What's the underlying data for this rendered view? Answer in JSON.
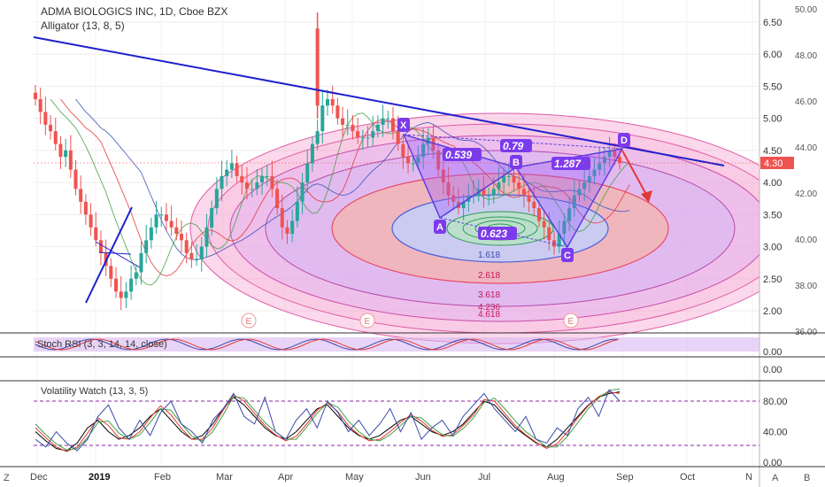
{
  "header": {
    "symbol_line": "ADMA BIOLOGICS INC, 1D, Cboe BZX",
    "indicator": "Alligator (13, 8, 5)"
  },
  "corner_buttons": {
    "left": "Z",
    "right_a": "A",
    "right_b": "B"
  },
  "colors": {
    "candle_up": "#26a69a",
    "candle_down": "#ef5350",
    "trendline": "#1f1fcc",
    "pattern_fill": "#9b59ff",
    "fib_outer": "#f06bb1",
    "fib_mid": "#e84c6a",
    "fib_inner": "#4a61d6",
    "price_label_bg": "#ef5350"
  },
  "chart_data": [
    {
      "type": "candlestick",
      "title": "ADMA BIOLOGICS INC, 1D, Cboe BZX",
      "x_labels": [
        "Dec",
        "2019",
        "Feb",
        "Mar",
        "Apr",
        "May",
        "Jun",
        "Jul",
        "Aug",
        "Sep",
        "Oct",
        "N"
      ],
      "y_left_ticks": [
        "6.50",
        "6.00",
        "5.50",
        "5.00",
        "4.50",
        "4.00",
        "3.50",
        "3.00",
        "2.50",
        "2.00"
      ],
      "y_right_ticks": [
        "50.00",
        "48.00",
        "46.00",
        "44.00",
        "42.00",
        "40.00",
        "38.00",
        "36.00"
      ],
      "ylim": [
        1.7,
        6.85
      ],
      "last_price": "4.30",
      "closes": [
        5.3,
        5.1,
        4.9,
        4.8,
        4.6,
        4.4,
        4.5,
        4.2,
        3.9,
        3.7,
        3.5,
        3.3,
        3.1,
        2.9,
        2.7,
        2.5,
        2.3,
        2.2,
        2.3,
        2.5,
        2.6,
        2.9,
        3.1,
        3.3,
        3.5,
        3.5,
        3.4,
        3.3,
        3.2,
        3.1,
        2.9,
        2.8,
        2.8,
        3.0,
        3.3,
        3.6,
        3.9,
        4.1,
        4.2,
        4.3,
        4.1,
        4.0,
        3.9,
        3.9,
        4.0,
        4.1,
        4.1,
        3.9,
        3.6,
        3.3,
        3.2,
        3.4,
        3.7,
        4.0,
        4.3,
        4.6,
        4.8,
        5.2,
        5.3,
        5.2,
        5.0,
        4.9,
        4.9,
        4.8,
        4.7,
        4.7,
        4.7,
        4.8,
        4.9,
        5.0,
        5.0,
        4.8,
        4.6,
        4.4,
        4.3,
        4.3,
        4.4,
        4.6,
        4.7,
        4.5,
        4.2,
        4.0,
        3.8,
        3.7,
        3.6,
        3.7,
        3.8,
        3.8,
        3.9,
        3.8,
        3.8,
        3.9,
        4.0,
        4.1,
        4.1,
        4.0,
        3.9,
        3.8,
        3.7,
        3.6,
        3.4,
        3.3,
        3.1,
        3.0,
        3.2,
        3.4,
        3.6,
        3.8,
        3.9,
        4.0,
        4.1,
        4.2,
        4.3,
        4.4,
        4.5,
        4.4,
        4.3
      ],
      "fib_ratio_labels": [
        "1.618",
        "2.618",
        "3.618",
        "4.236",
        "4.618"
      ],
      "pattern": {
        "points": [
          {
            "label": "X",
            "price": 4.65
          },
          {
            "label": "A",
            "price": 3.5
          },
          {
            "label": "B",
            "price": 4.1
          },
          {
            "label": "C",
            "price": 3.0
          },
          {
            "label": "D",
            "price": 4.45
          }
        ],
        "ratios": [
          "0.539",
          "0.79",
          "1.287",
          "0.623"
        ]
      },
      "earnings_marker": "E"
    },
    {
      "type": "line",
      "title": "Stoch RSI (3, 3, 14, 14, close)",
      "y_ticks": [
        "0.00"
      ]
    },
    {
      "type": "line",
      "title": "",
      "y_ticks": [
        "0.00"
      ]
    },
    {
      "type": "line",
      "title": "Volatility Watch (13, 3, 5)",
      "y_ticks": [
        "80.00",
        "40.00",
        "0.00"
      ],
      "ylim": [
        0,
        100
      ],
      "series": [
        {
          "name": "",
          "color": "#000000",
          "values": [
            40,
            28,
            18,
            15,
            25,
            45,
            55,
            40,
            30,
            35,
            45,
            60,
            70,
            55,
            40,
            30,
            35,
            50,
            70,
            85,
            75,
            60,
            45,
            35,
            30,
            40,
            55,
            70,
            75,
            60,
            45,
            35,
            30,
            35,
            45,
            55,
            60,
            50,
            40,
            35,
            40,
            50,
            65,
            80,
            75,
            60,
            45,
            35,
            25,
            20,
            30,
            45,
            60,
            75,
            85,
            90,
            92
          ]
        },
        {
          "name": "",
          "color": "#e53935",
          "values": [
            45,
            32,
            20,
            14,
            20,
            38,
            58,
            48,
            32,
            30,
            40,
            58,
            74,
            62,
            44,
            30,
            30,
            45,
            68,
            88,
            80,
            64,
            48,
            36,
            28,
            34,
            50,
            68,
            78,
            66,
            48,
            36,
            28,
            30,
            40,
            52,
            62,
            54,
            42,
            34,
            36,
            48,
            62,
            82,
            80,
            64,
            48,
            36,
            26,
            18,
            24,
            40,
            58,
            74,
            86,
            92,
            90
          ]
        },
        {
          "name": "",
          "color": "#43a047",
          "values": [
            50,
            36,
            24,
            16,
            18,
            32,
            52,
            54,
            38,
            30,
            36,
            52,
            70,
            68,
            50,
            34,
            28,
            40,
            62,
            86,
            84,
            68,
            52,
            40,
            30,
            30,
            46,
            64,
            78,
            72,
            54,
            40,
            30,
            28,
            36,
            48,
            60,
            58,
            46,
            36,
            34,
            44,
            58,
            78,
            84,
            70,
            54,
            40,
            30,
            20,
            20,
            34,
            52,
            70,
            84,
            94,
            96
          ]
        },
        {
          "name": "",
          "color": "#3949ab",
          "values": [
            30,
            20,
            40,
            25,
            15,
            30,
            60,
            75,
            45,
            30,
            55,
            35,
            65,
            80,
            50,
            40,
            25,
            55,
            70,
            90,
            60,
            50,
            85,
            40,
            30,
            55,
            70,
            45,
            80,
            65,
            40,
            55,
            35,
            50,
            70,
            40,
            65,
            30,
            45,
            55,
            35,
            60,
            75,
            90,
            70,
            55,
            40,
            60,
            30,
            25,
            45,
            35,
            70,
            85,
            60,
            95,
            80
          ]
        }
      ],
      "reference_lines": [
        80,
        20
      ]
    }
  ]
}
